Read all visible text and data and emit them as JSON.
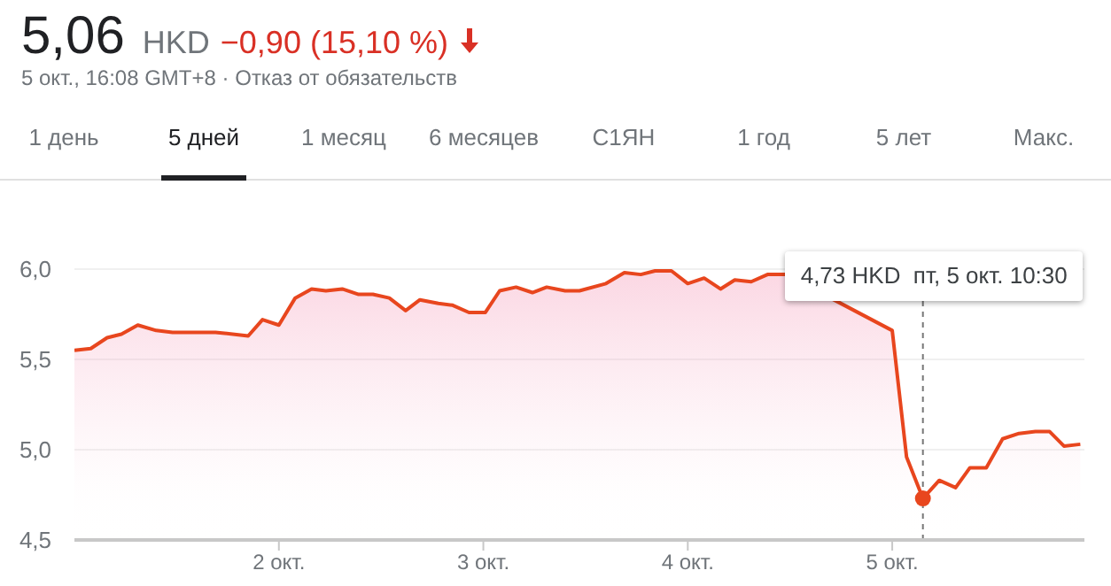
{
  "chart_data": {
    "type": "area",
    "title": "5,06",
    "subtitle": "5 окт., 16:08 GMT+8 · Отказ от обязательств",
    "annotations": [
      "HKD",
      "−0,90 (15,10 %)",
      "1 день",
      "5 дней",
      "1 месяц",
      "6 месяцев",
      "С1ЯН",
      "1 год",
      "5 лет",
      "Макс.",
      "4,73 HKD  пт, 5 окт. 10:30"
    ],
    "x": [
      1.0,
      1.08,
      1.16,
      1.23,
      1.31,
      1.4,
      1.48,
      1.69,
      1.85,
      1.92,
      2.0,
      2.08,
      2.16,
      2.23,
      2.31,
      2.39,
      2.46,
      2.54,
      2.62,
      2.69,
      2.78,
      2.85,
      2.93,
      3.01,
      3.08,
      3.16,
      3.24,
      3.31,
      3.4,
      3.47,
      3.6,
      3.69,
      3.77,
      3.84,
      3.92,
      4.0,
      4.08,
      4.16,
      4.23,
      4.31,
      4.39,
      4.48,
      4.95,
      5.0,
      5.07,
      5.15,
      5.23,
      5.31,
      5.38,
      5.46,
      5.54,
      5.62,
      5.7,
      5.77,
      5.84,
      5.92
    ],
    "series": [
      {
        "color": "#e8461e",
        "values": [
          5.55,
          5.56,
          5.62,
          5.64,
          5.69,
          5.66,
          5.65,
          5.65,
          5.63,
          5.72,
          5.69,
          5.84,
          5.89,
          5.88,
          5.89,
          5.86,
          5.86,
          5.84,
          5.77,
          5.83,
          5.81,
          5.8,
          5.76,
          5.76,
          5.88,
          5.9,
          5.87,
          5.9,
          5.88,
          5.88,
          5.92,
          5.98,
          5.97,
          5.99,
          5.99,
          5.92,
          5.95,
          5.89,
          5.94,
          5.93,
          5.97,
          5.97,
          null,
          5.66,
          4.96,
          4.73,
          4.83,
          4.79,
          4.9,
          4.9,
          5.06,
          5.09,
          5.1,
          5.1,
          5.02,
          5.03
        ]
      }
    ],
    "xlim": [
      1,
      5.94
    ],
    "xticks": [
      {
        "value": 2,
        "label": "2 окт."
      },
      {
        "value": 3,
        "label": "3 окт."
      },
      {
        "value": 4,
        "label": "4 окт."
      },
      {
        "value": 5,
        "label": "5 окт."
      }
    ],
    "ylim": [
      4.5,
      6.0
    ],
    "yticks": [
      {
        "value": 4.5,
        "label": "4,5"
      },
      {
        "value": 5,
        "label": "5,0"
      },
      {
        "value": 5.5,
        "label": "5,5"
      },
      {
        "value": 6,
        "label": "6,0"
      }
    ],
    "ref_lines": [
      {
        "axis": "x",
        "value": 5.15,
        "line_style": "dashed",
        "color": "#777777"
      }
    ],
    "grid": "y",
    "legend": false,
    "marker": "none",
    "line_style": "solid"
  }
}
